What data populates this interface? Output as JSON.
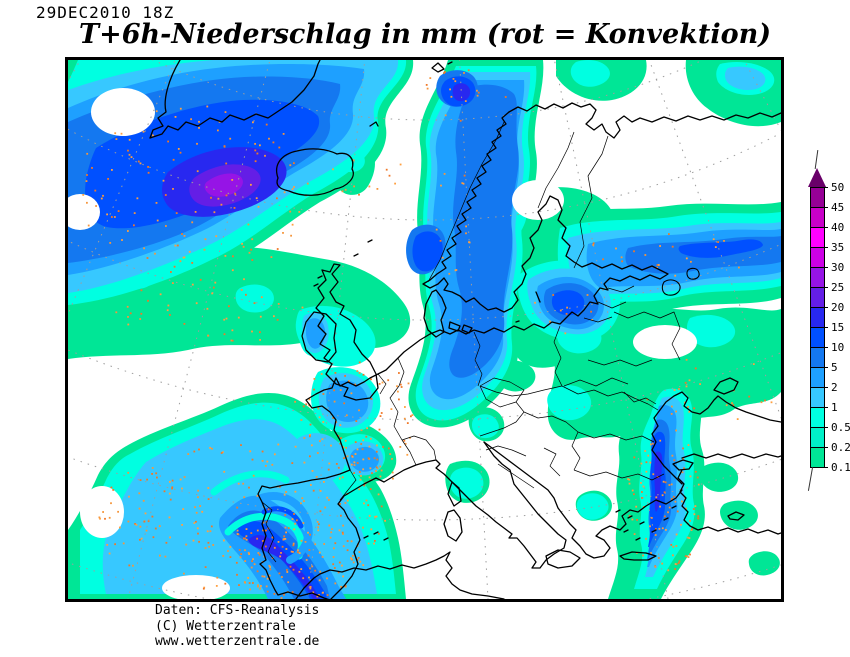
{
  "header": {
    "date": "29DEC2010 18Z",
    "title": "T+6h-Niederschlag in mm (rot = Konvektion)"
  },
  "footer": {
    "line1": "Daten: CFS-Reanalysis",
    "line2": "(C) Wetterzentrale",
    "line3": "www.wetterzentrale.de"
  },
  "legend": {
    "unit": "mm",
    "arrow_color": "#690069",
    "convection_dot_color": "#F5963C",
    "ticks": [
      "50",
      "45",
      "40",
      "35",
      "30",
      "25",
      "20",
      "15",
      "10",
      "5",
      "2",
      "1",
      "0.5",
      "0.2",
      "0.1"
    ],
    "segments": [
      "#960096",
      "#C800C8",
      "#FF00FF",
      "#CD00E6",
      "#9614E6",
      "#641EE6",
      "#2828F0",
      "#0050FF",
      "#1478F0",
      "#1EA0FF",
      "#37C8FF",
      "#00FFE1",
      "#00F0C8",
      "#00E696"
    ]
  },
  "map": {
    "region": "Europe / North Atlantic",
    "shading": "6h precipitation in mm, red speckles = convective"
  }
}
